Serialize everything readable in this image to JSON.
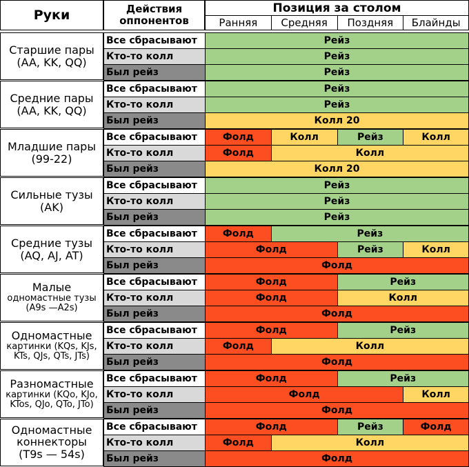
{
  "colors": {
    "raise": "#a3d18a",
    "call": "#ffd664",
    "fold": "#fd4e21",
    "bg_white": "#ffffff",
    "bg_light": "#d9d9d9",
    "bg_dark": "#8a8a8a",
    "border": "#000000"
  },
  "header": {
    "hands": "Руки",
    "actions_line1": "Действия",
    "actions_line2": "оппонентов",
    "position": "Позиция за столом",
    "positions": [
      "Ранняя",
      "Средняя",
      "Поздняя",
      "Блайнды"
    ]
  },
  "actions": [
    "Все сбрасывают",
    "Кто-то колл",
    "Был рейз"
  ],
  "groups": [
    {
      "lines": [
        "Старшие пары",
        "(AA, KK, QQ)"
      ],
      "small": false,
      "rows": [
        [
          {
            "span": 4,
            "action": "raise",
            "label": "Рейз"
          }
        ],
        [
          {
            "span": 4,
            "action": "raise",
            "label": "Рейз"
          }
        ],
        [
          {
            "span": 4,
            "action": "raise",
            "label": "Рейз"
          }
        ]
      ]
    },
    {
      "lines": [
        "Средние пары",
        "(AA, KK, QQ)"
      ],
      "small": false,
      "rows": [
        [
          {
            "span": 4,
            "action": "raise",
            "label": "Рейз"
          }
        ],
        [
          {
            "span": 4,
            "action": "raise",
            "label": "Рейз"
          }
        ],
        [
          {
            "span": 4,
            "action": "call",
            "label": "Колл 20"
          }
        ]
      ]
    },
    {
      "lines": [
        "Младшие пары",
        "(99-22)"
      ],
      "small": false,
      "rows": [
        [
          {
            "span": 1,
            "action": "fold",
            "label": "Фолд"
          },
          {
            "span": 1,
            "action": "call",
            "label": "Колл"
          },
          {
            "span": 1,
            "action": "raise",
            "label": "Рейз"
          },
          {
            "span": 1,
            "action": "call",
            "label": "Колл"
          }
        ],
        [
          {
            "span": 1,
            "action": "fold",
            "label": "Фолд"
          },
          {
            "span": 3,
            "action": "call",
            "label": "Колл"
          }
        ],
        [
          {
            "span": 4,
            "action": "call",
            "label": "Колл 20"
          }
        ]
      ]
    },
    {
      "lines": [
        "Сильные тузы",
        "(AK)"
      ],
      "small": false,
      "rows": [
        [
          {
            "span": 4,
            "action": "raise",
            "label": "Рейз"
          }
        ],
        [
          {
            "span": 4,
            "action": "raise",
            "label": "Рейз"
          }
        ],
        [
          {
            "span": 4,
            "action": "raise",
            "label": "Рейз"
          }
        ]
      ]
    },
    {
      "lines": [
        "Средние тузы",
        "(AQ, AJ, AT)"
      ],
      "small": false,
      "rows": [
        [
          {
            "span": 1,
            "action": "fold",
            "label": "Фолд"
          },
          {
            "span": 3,
            "action": "raise",
            "label": "Рейз"
          }
        ],
        [
          {
            "span": 2,
            "action": "fold",
            "label": "Фолд"
          },
          {
            "span": 1,
            "action": "raise",
            "label": "Рейз"
          },
          {
            "span": 1,
            "action": "call",
            "label": "Колл"
          }
        ],
        [
          {
            "span": 4,
            "action": "fold",
            "label": "Фолд"
          }
        ]
      ]
    },
    {
      "lines": [
        "Малые",
        "одномастные тузы",
        "(A9s —A2s)"
      ],
      "small": true,
      "rows": [
        [
          {
            "span": 2,
            "action": "fold",
            "label": "Фолд"
          },
          {
            "span": 2,
            "action": "raise",
            "label": "Рейз"
          }
        ],
        [
          {
            "span": 2,
            "action": "fold",
            "label": "Фолд"
          },
          {
            "span": 2,
            "action": "call",
            "label": "Колл"
          }
        ],
        [
          {
            "span": 4,
            "action": "fold",
            "label": "Фолд"
          }
        ]
      ]
    },
    {
      "lines": [
        "Одномастные",
        "картинки (KQs, KJs,",
        "KTs, QJs, QTs, JTs)"
      ],
      "small": true,
      "rows": [
        [
          {
            "span": 2,
            "action": "fold",
            "label": "Фолд"
          },
          {
            "span": 2,
            "action": "raise",
            "label": "Рейз"
          }
        ],
        [
          {
            "span": 1,
            "action": "fold",
            "label": "Фолд"
          },
          {
            "span": 3,
            "action": "call",
            "label": "Колл"
          }
        ],
        [
          {
            "span": 4,
            "action": "fold",
            "label": "Фолд"
          }
        ]
      ]
    },
    {
      "lines": [
        "Разномастные",
        "картинки (KQo, KJo,",
        "KTos, QJo, QTo, JTo)"
      ],
      "small": true,
      "rows": [
        [
          {
            "span": 2,
            "action": "fold",
            "label": "Фолд"
          },
          {
            "span": 2,
            "action": "raise",
            "label": "Рейз"
          }
        ],
        [
          {
            "span": 3,
            "action": "fold",
            "label": "Фолд"
          },
          {
            "span": 1,
            "action": "call",
            "label": "Колл"
          }
        ],
        [
          {
            "span": 4,
            "action": "fold",
            "label": "Фолд"
          }
        ]
      ]
    },
    {
      "lines": [
        "Одномастные",
        "коннекторы",
        "(T9s — 54s)"
      ],
      "small": false,
      "rows": [
        [
          {
            "span": 2,
            "action": "fold",
            "label": "Фолд"
          },
          {
            "span": 1,
            "action": "raise",
            "label": "Рейз"
          },
          {
            "span": 1,
            "action": "fold",
            "label": "Фолд"
          }
        ],
        [
          {
            "span": 1,
            "action": "fold",
            "label": "Фолд"
          },
          {
            "span": 3,
            "action": "call",
            "label": "Колл"
          }
        ],
        [
          {
            "span": 4,
            "action": "fold",
            "label": "Фолд"
          }
        ]
      ]
    }
  ]
}
